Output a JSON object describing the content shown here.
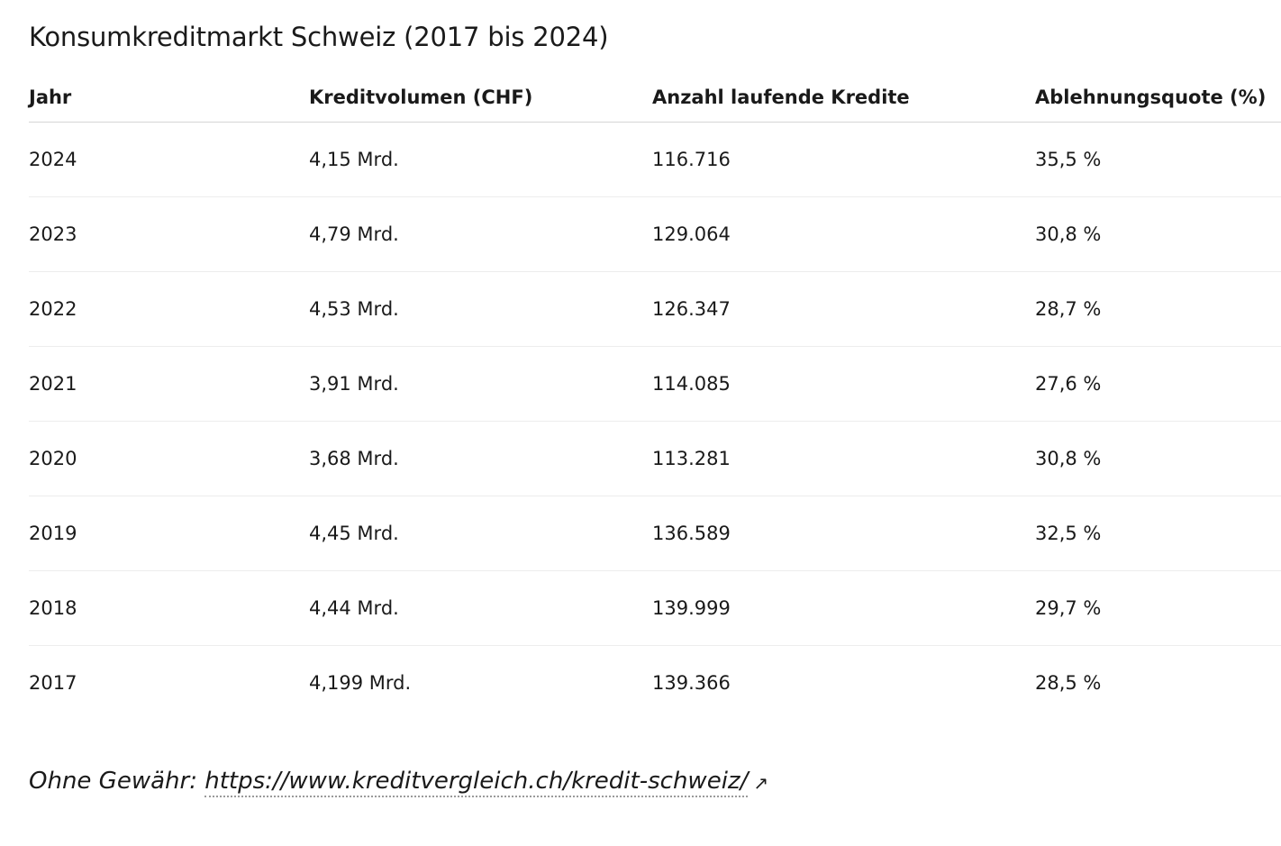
{
  "title": "Konsumkreditmarkt Schweiz (2017 bis 2024)",
  "table": {
    "headers": [
      "Jahr",
      "Kreditvolumen (CHF)",
      "Anzahl laufende Kredite",
      "Ablehnungsquote (%)"
    ],
    "rows": [
      [
        "2024",
        "4,15 Mrd.",
        "116.716",
        "35,5 %"
      ],
      [
        "2023",
        "4,79 Mrd.",
        "129.064",
        "30,8 %"
      ],
      [
        "2022",
        "4,53 Mrd.",
        "126.347",
        "28,7 %"
      ],
      [
        "2021",
        "3,91 Mrd.",
        "114.085",
        "27,6 %"
      ],
      [
        "2020",
        "3,68 Mrd.",
        "113.281",
        "30,8 %"
      ],
      [
        "2019",
        "4,45 Mrd.",
        "136.589",
        "32,5 %"
      ],
      [
        "2018",
        "4,44 Mrd.",
        "139.999",
        "29,7 %"
      ],
      [
        "2017",
        "4,199 Mrd.",
        "139.366",
        "28,5 %"
      ]
    ]
  },
  "source": {
    "label": "Ohne Gewähr:",
    "link_text": "https://www.kreditvergleich.ch/kredit-schweiz/",
    "icon": "external-link-icon"
  }
}
